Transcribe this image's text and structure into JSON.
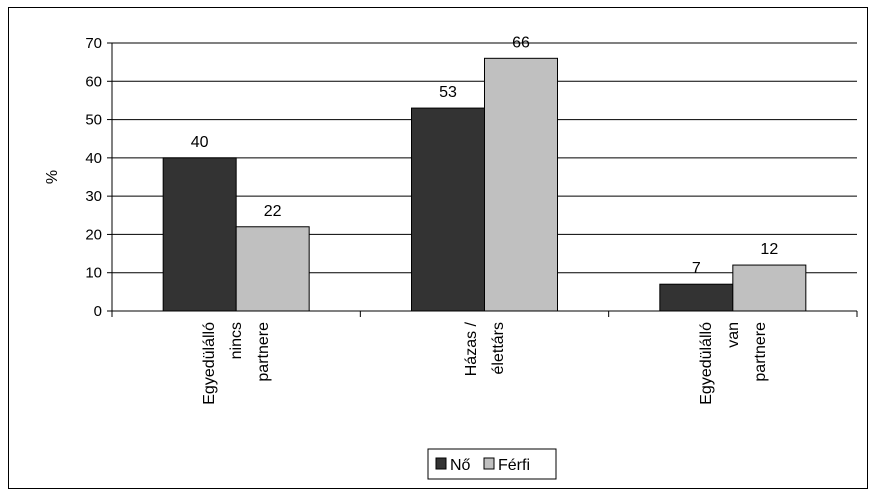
{
  "chart_data": {
    "type": "bar",
    "ylabel": "%",
    "ylim": [
      0,
      70
    ],
    "yticks": [
      0,
      10,
      20,
      30,
      40,
      50,
      60,
      70
    ],
    "categories": [
      [
        "Egyedülálló",
        "nincs",
        "partnere"
      ],
      [
        "Házas /",
        "élettárs"
      ],
      [
        "Egyedülálló",
        "van",
        "partnere"
      ]
    ],
    "series": [
      {
        "name": "Nő",
        "values": [
          40,
          53,
          7
        ],
        "labels": [
          "40",
          "53",
          "7"
        ],
        "color": "#333333"
      },
      {
        "name": "Férfi",
        "values": [
          22,
          66,
          12
        ],
        "labels": [
          "22",
          "66",
          "12"
        ],
        "color": "#c0c0c0"
      }
    ],
    "grid": true,
    "legend": "bottom"
  }
}
